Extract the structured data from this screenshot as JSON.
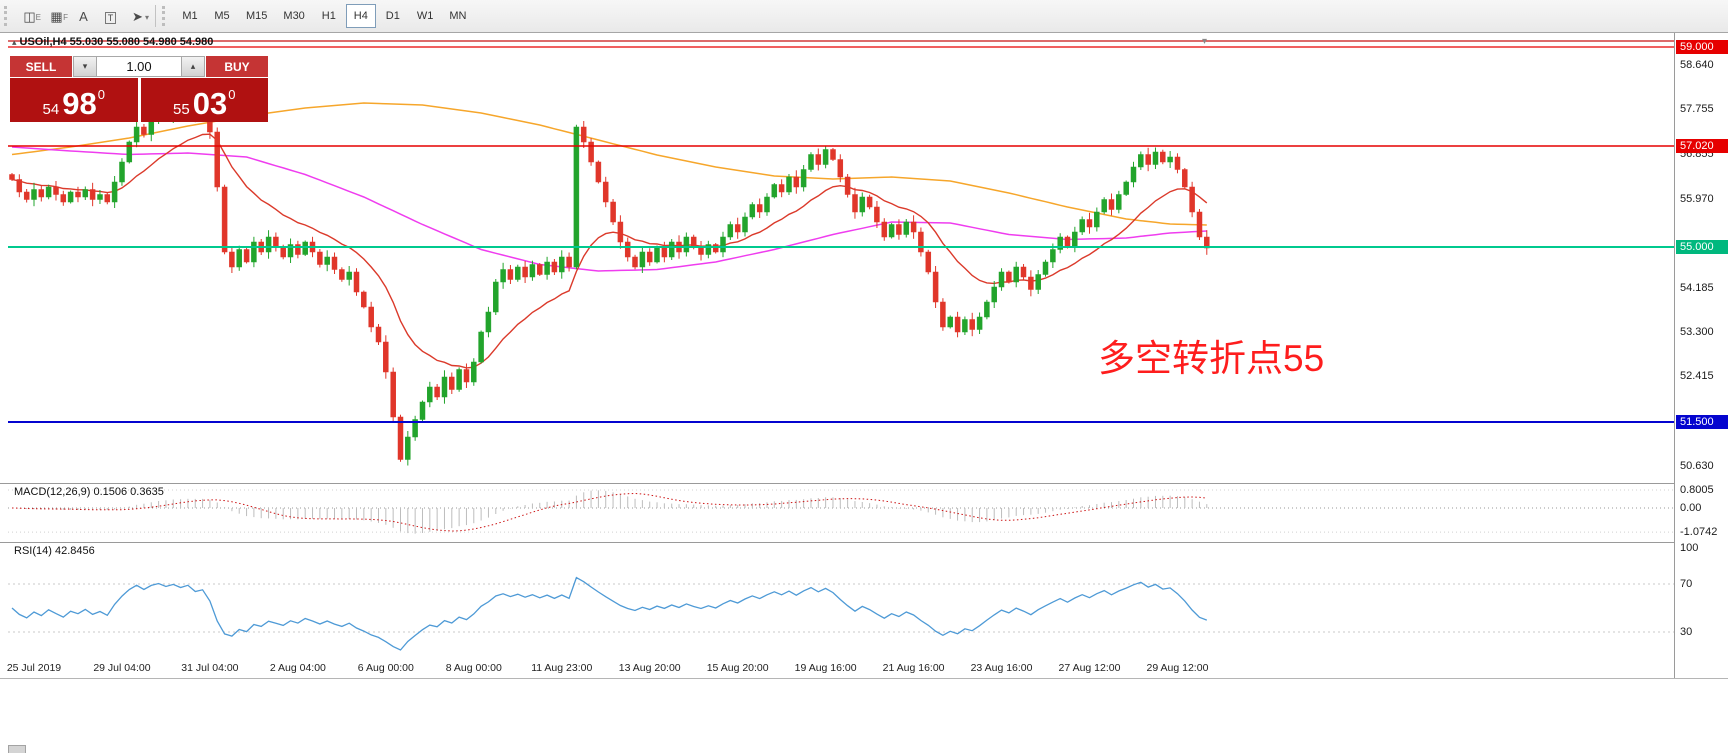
{
  "toolbar": {
    "icons": [
      {
        "name": "candlestick-chart-icon",
        "glyph": "◫",
        "sub": "E",
        "boxed": false
      },
      {
        "name": "grid-icon",
        "glyph": "▦",
        "sub": "F",
        "boxed": false
      },
      {
        "name": "text-label-icon",
        "glyph": "A",
        "sub": "",
        "boxed": false
      },
      {
        "name": "textbox-icon",
        "glyph": "T",
        "sub": "",
        "boxed": true
      },
      {
        "name": "shapes-dropdown-icon",
        "glyph": "➤",
        "sub": "▾",
        "boxed": false
      }
    ],
    "timeframes": [
      {
        "label": "M1",
        "active": false
      },
      {
        "label": "M5",
        "active": false
      },
      {
        "label": "M15",
        "active": false
      },
      {
        "label": "M30",
        "active": false
      },
      {
        "label": "H1",
        "active": false
      },
      {
        "label": "H4",
        "active": true
      },
      {
        "label": "D1",
        "active": false
      },
      {
        "label": "W1",
        "active": false
      },
      {
        "label": "MN",
        "active": false
      }
    ]
  },
  "chart": {
    "header": "USOil,H4  55.030 55.080 54.980 54.980",
    "header_marker_glyph": "▴",
    "shift_marker_glyph": "▾",
    "annotation": "多空转折点55",
    "bull_color": "#22a42c",
    "bear_color": "#e0362a",
    "first_open": 56.45,
    "candles_closes": [
      56.35,
      56.1,
      55.95,
      56.15,
      56.0,
      56.2,
      56.05,
      55.9,
      56.1,
      56.0,
      56.15,
      55.95,
      56.05,
      55.9,
      56.3,
      56.7,
      57.1,
      57.4,
      57.25,
      57.55,
      57.7,
      57.6,
      57.75,
      57.65,
      57.8,
      57.6,
      57.7,
      57.3,
      56.2,
      54.9,
      54.6,
      54.95,
      54.7,
      55.1,
      54.9,
      55.2,
      55.0,
      54.8,
      55.05,
      54.85,
      55.1,
      54.9,
      54.65,
      54.8,
      54.55,
      54.35,
      54.5,
      54.1,
      53.8,
      53.4,
      53.1,
      52.5,
      51.6,
      50.75,
      51.2,
      51.55,
      51.9,
      52.2,
      52.0,
      52.4,
      52.15,
      52.55,
      52.3,
      52.7,
      53.3,
      53.7,
      54.3,
      54.55,
      54.35,
      54.6,
      54.4,
      54.65,
      54.45,
      54.7,
      54.5,
      54.8,
      54.6,
      57.4,
      57.1,
      56.7,
      56.3,
      55.9,
      55.5,
      55.1,
      54.8,
      54.6,
      54.9,
      54.7,
      55.0,
      54.8,
      55.1,
      54.9,
      55.2,
      55.0,
      54.85,
      55.05,
      54.9,
      55.2,
      55.45,
      55.3,
      55.6,
      55.85,
      55.7,
      56.0,
      56.25,
      56.1,
      56.4,
      56.2,
      56.55,
      56.85,
      56.65,
      56.95,
      56.75,
      56.4,
      56.05,
      55.7,
      56.0,
      55.8,
      55.5,
      55.2,
      55.45,
      55.25,
      55.5,
      55.3,
      54.9,
      54.5,
      53.9,
      53.4,
      53.6,
      53.3,
      53.55,
      53.35,
      53.6,
      53.9,
      54.2,
      54.5,
      54.3,
      54.6,
      54.4,
      54.15,
      54.45,
      54.7,
      54.95,
      55.2,
      55.0,
      55.3,
      55.55,
      55.4,
      55.7,
      55.95,
      55.75,
      56.05,
      56.3,
      56.6,
      56.85,
      56.65,
      56.9,
      56.7,
      56.8,
      56.55,
      56.2,
      55.7,
      55.2,
      54.98
    ],
    "ma_fast": {
      "period": 16,
      "color": "#db3a2b"
    },
    "ma_mid_color": "#ef3def",
    "ma_slow_color": "#f6a62b",
    "ma_mid_points": [
      [
        0,
        57.0
      ],
      [
        8,
        56.92
      ],
      [
        16,
        56.85
      ],
      [
        24,
        56.88
      ],
      [
        32,
        56.8
      ],
      [
        40,
        56.45
      ],
      [
        48,
        56.0
      ],
      [
        56,
        55.45
      ],
      [
        64,
        54.95
      ],
      [
        72,
        54.65
      ],
      [
        80,
        54.52
      ],
      [
        88,
        54.55
      ],
      [
        96,
        54.7
      ],
      [
        104,
        54.95
      ],
      [
        112,
        55.25
      ],
      [
        120,
        55.5
      ],
      [
        128,
        55.48
      ],
      [
        136,
        55.25
      ],
      [
        144,
        55.15
      ],
      [
        152,
        55.18
      ],
      [
        158,
        55.28
      ],
      [
        163,
        55.32
      ]
    ],
    "ma_slow_points": [
      [
        0,
        56.85
      ],
      [
        8,
        57.0
      ],
      [
        16,
        57.18
      ],
      [
        24,
        57.42
      ],
      [
        32,
        57.62
      ],
      [
        40,
        57.78
      ],
      [
        48,
        57.88
      ],
      [
        56,
        57.84
      ],
      [
        64,
        57.68
      ],
      [
        72,
        57.44
      ],
      [
        80,
        57.14
      ],
      [
        88,
        56.84
      ],
      [
        96,
        56.6
      ],
      [
        104,
        56.42
      ],
      [
        112,
        56.36
      ],
      [
        120,
        56.4
      ],
      [
        128,
        56.32
      ],
      [
        136,
        56.08
      ],
      [
        144,
        55.8
      ],
      [
        152,
        55.56
      ],
      [
        158,
        55.46
      ],
      [
        163,
        55.44
      ]
    ],
    "hlines": [
      {
        "price": 59.12,
        "color": "#c81414",
        "width": 1.3,
        "badge": "",
        "badge_color": ""
      },
      {
        "price": 59.0,
        "color": "#e60000",
        "width": 1.3,
        "badge": "59.000",
        "badge_color": "#e60000"
      },
      {
        "price": 57.02,
        "color": "#e60000",
        "width": 1.6,
        "badge": "57.020",
        "badge_color": "#e60000"
      },
      {
        "price": 55.0,
        "color": "#00c98e",
        "width": 2,
        "badge": "55.000",
        "badge_color": "#00b87e"
      },
      {
        "price": 51.5,
        "color": "#0404cf",
        "width": 2,
        "badge": "51.500",
        "badge_color": "#0404cf"
      }
    ],
    "price_ticks": [
      {
        "price": 58.64,
        "label": "58.640"
      },
      {
        "price": 57.755,
        "label": "57.755"
      },
      {
        "price": 56.855,
        "label": "56.855"
      },
      {
        "price": 55.97,
        "label": "55.970"
      },
      {
        "price": 54.185,
        "label": "54.185"
      },
      {
        "price": 53.3,
        "label": "53.300"
      },
      {
        "price": 52.415,
        "label": "52.415"
      },
      {
        "price": 50.63,
        "label": "50.630"
      }
    ],
    "time_labels": [
      {
        "idx": 3,
        "text": "25 Jul 2019"
      },
      {
        "idx": 15,
        "text": "29 Jul 04:00"
      },
      {
        "idx": 27,
        "text": "31 Jul 04:00"
      },
      {
        "idx": 39,
        "text": "2 Aug 04:00"
      },
      {
        "idx": 51,
        "text": "6 Aug 00:00"
      },
      {
        "idx": 63,
        "text": "8 Aug 00:00"
      },
      {
        "idx": 75,
        "text": "11 Aug 23:00"
      },
      {
        "idx": 87,
        "text": "13 Aug 20:00"
      },
      {
        "idx": 99,
        "text": "15 Aug 20:00"
      },
      {
        "idx": 111,
        "text": "19 Aug 16:00"
      },
      {
        "idx": 123,
        "text": "21 Aug 16:00"
      },
      {
        "idx": 135,
        "text": "23 Aug 16:00"
      },
      {
        "idx": 147,
        "text": "27 Aug 12:00"
      },
      {
        "idx": 159,
        "text": "29 Aug 12:00"
      }
    ]
  },
  "macd": {
    "label": "MACD(12,26,9) 0.1506 0.3635",
    "bar_color": "#bdbdbd",
    "signal_color": "#cc1414",
    "ticks": [
      {
        "v": 0.8005,
        "label": "0.8005"
      },
      {
        "v": 0,
        "label": "0.00"
      },
      {
        "v": -1.0742,
        "label": "-1.0742"
      }
    ]
  },
  "rsi": {
    "label": "RSI(14) 42.8456",
    "line_color": "#4e9ad6",
    "levels": [
      70,
      30
    ],
    "ticks": [
      {
        "v": 100,
        "label": "100"
      },
      {
        "v": 70,
        "label": "70"
      },
      {
        "v": 30,
        "label": "30"
      }
    ]
  },
  "trade_widget": {
    "sell_label": "SELL",
    "buy_label": "BUY",
    "quantity": "1.00",
    "decrease_glyph": "▾",
    "increase_glyph": "▴",
    "bid": {
      "int": "54",
      "pips": "98",
      "pipette": "0"
    },
    "ask": {
      "int": "55",
      "pips": "03",
      "pipette": "0"
    }
  },
  "colors": {
    "widget_button": "#c53434",
    "widget_panel": "#b01111",
    "annotation_red": "#fe1d1d"
  }
}
